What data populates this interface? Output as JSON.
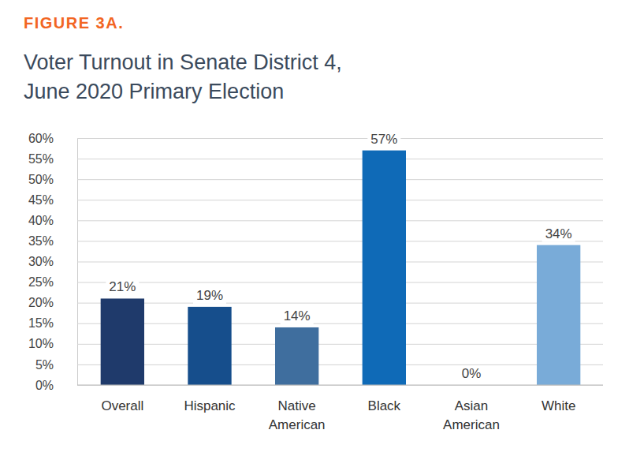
{
  "chart_data": {
    "type": "bar",
    "figure_label": "FIGURE 3A.",
    "title": [
      "Voter Turnout in Senate District 4,",
      "June 2020 Primary Election"
    ],
    "categories": [
      "Overall",
      "Hispanic",
      "Native American",
      "Black",
      "Asian American",
      "White"
    ],
    "values": [
      21,
      19,
      14,
      57,
      0,
      34
    ],
    "value_labels": [
      "21%",
      "19%",
      "14%",
      "57%",
      "0%",
      "34%"
    ],
    "colors": [
      "#1f3a6b",
      "#164e8c",
      "#3f6e9e",
      "#0f6ab7",
      "#2b74b5",
      "#79abd8"
    ],
    "ylim": [
      0,
      60
    ],
    "yticks": [
      {
        "value": 0,
        "label": "0%"
      },
      {
        "value": 5,
        "label": "5%"
      },
      {
        "value": 10,
        "label": "10%"
      },
      {
        "value": 15,
        "label": "15%"
      },
      {
        "value": 20,
        "label": "20%"
      },
      {
        "value": 25,
        "label": "25%"
      },
      {
        "value": 30,
        "label": "30%"
      },
      {
        "value": 35,
        "label": "35%"
      },
      {
        "value": 40,
        "label": "40%"
      },
      {
        "value": 45,
        "label": "45%"
      },
      {
        "value": 50,
        "label": "50%"
      },
      {
        "value": 55,
        "label": "55%"
      },
      {
        "value": 60,
        "label": "60%"
      }
    ],
    "grid": true,
    "data_labels": true
  }
}
